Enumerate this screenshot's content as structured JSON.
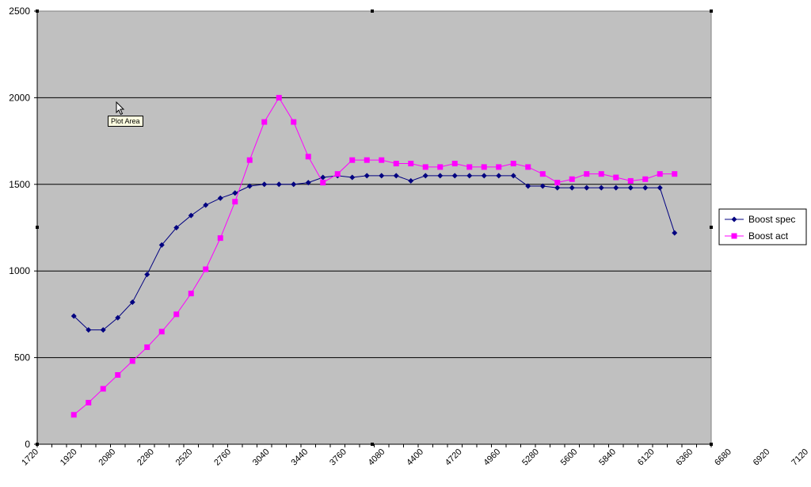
{
  "chart_data": {
    "type": "line",
    "title": "",
    "xlabel": "",
    "ylabel": "",
    "ylim": [
      0,
      2500
    ],
    "y_ticks": [
      "0",
      "500",
      "1000",
      "1500",
      "2000",
      "2500"
    ],
    "x_tick_labels": [
      "1720",
      "1920",
      "2080",
      "2280",
      "2520",
      "2760",
      "3040",
      "3440",
      "3760",
      "4080",
      "4400",
      "4720",
      "4960",
      "5280",
      "5600",
      "5840",
      "6120",
      "6360",
      "6680",
      "6920",
      "7120"
    ],
    "grid": "horizontal",
    "legend_position": "right",
    "plot_background": "#c0c0c0",
    "series": [
      {
        "name": "Boost spec",
        "color": "#000080",
        "marker": "diamond",
        "values": [
          740,
          660,
          660,
          730,
          820,
          980,
          1150,
          1250,
          1320,
          1380,
          1420,
          1450,
          1490,
          1500,
          1500,
          1500,
          1510,
          1540,
          1550,
          1540,
          1550,
          1550,
          1550,
          1520,
          1550,
          1550,
          1550,
          1550,
          1550,
          1550,
          1550,
          1490,
          1490,
          1480,
          1480,
          1480,
          1480,
          1480,
          1480,
          1480,
          1480,
          1220
        ]
      },
      {
        "name": "Boost act",
        "color": "#ff00ff",
        "marker": "square",
        "values": [
          170,
          240,
          320,
          400,
          480,
          560,
          650,
          750,
          870,
          1010,
          1190,
          1400,
          1640,
          1860,
          2000,
          1860,
          1660,
          1510,
          1560,
          1640,
          1640,
          1640,
          1620,
          1620,
          1600,
          1600,
          1620,
          1600,
          1600,
          1600,
          1620,
          1600,
          1560,
          1510,
          1530,
          1560,
          1560,
          1540,
          1520,
          1530,
          1560,
          1560
        ]
      }
    ]
  },
  "tooltip": "Plot Area"
}
